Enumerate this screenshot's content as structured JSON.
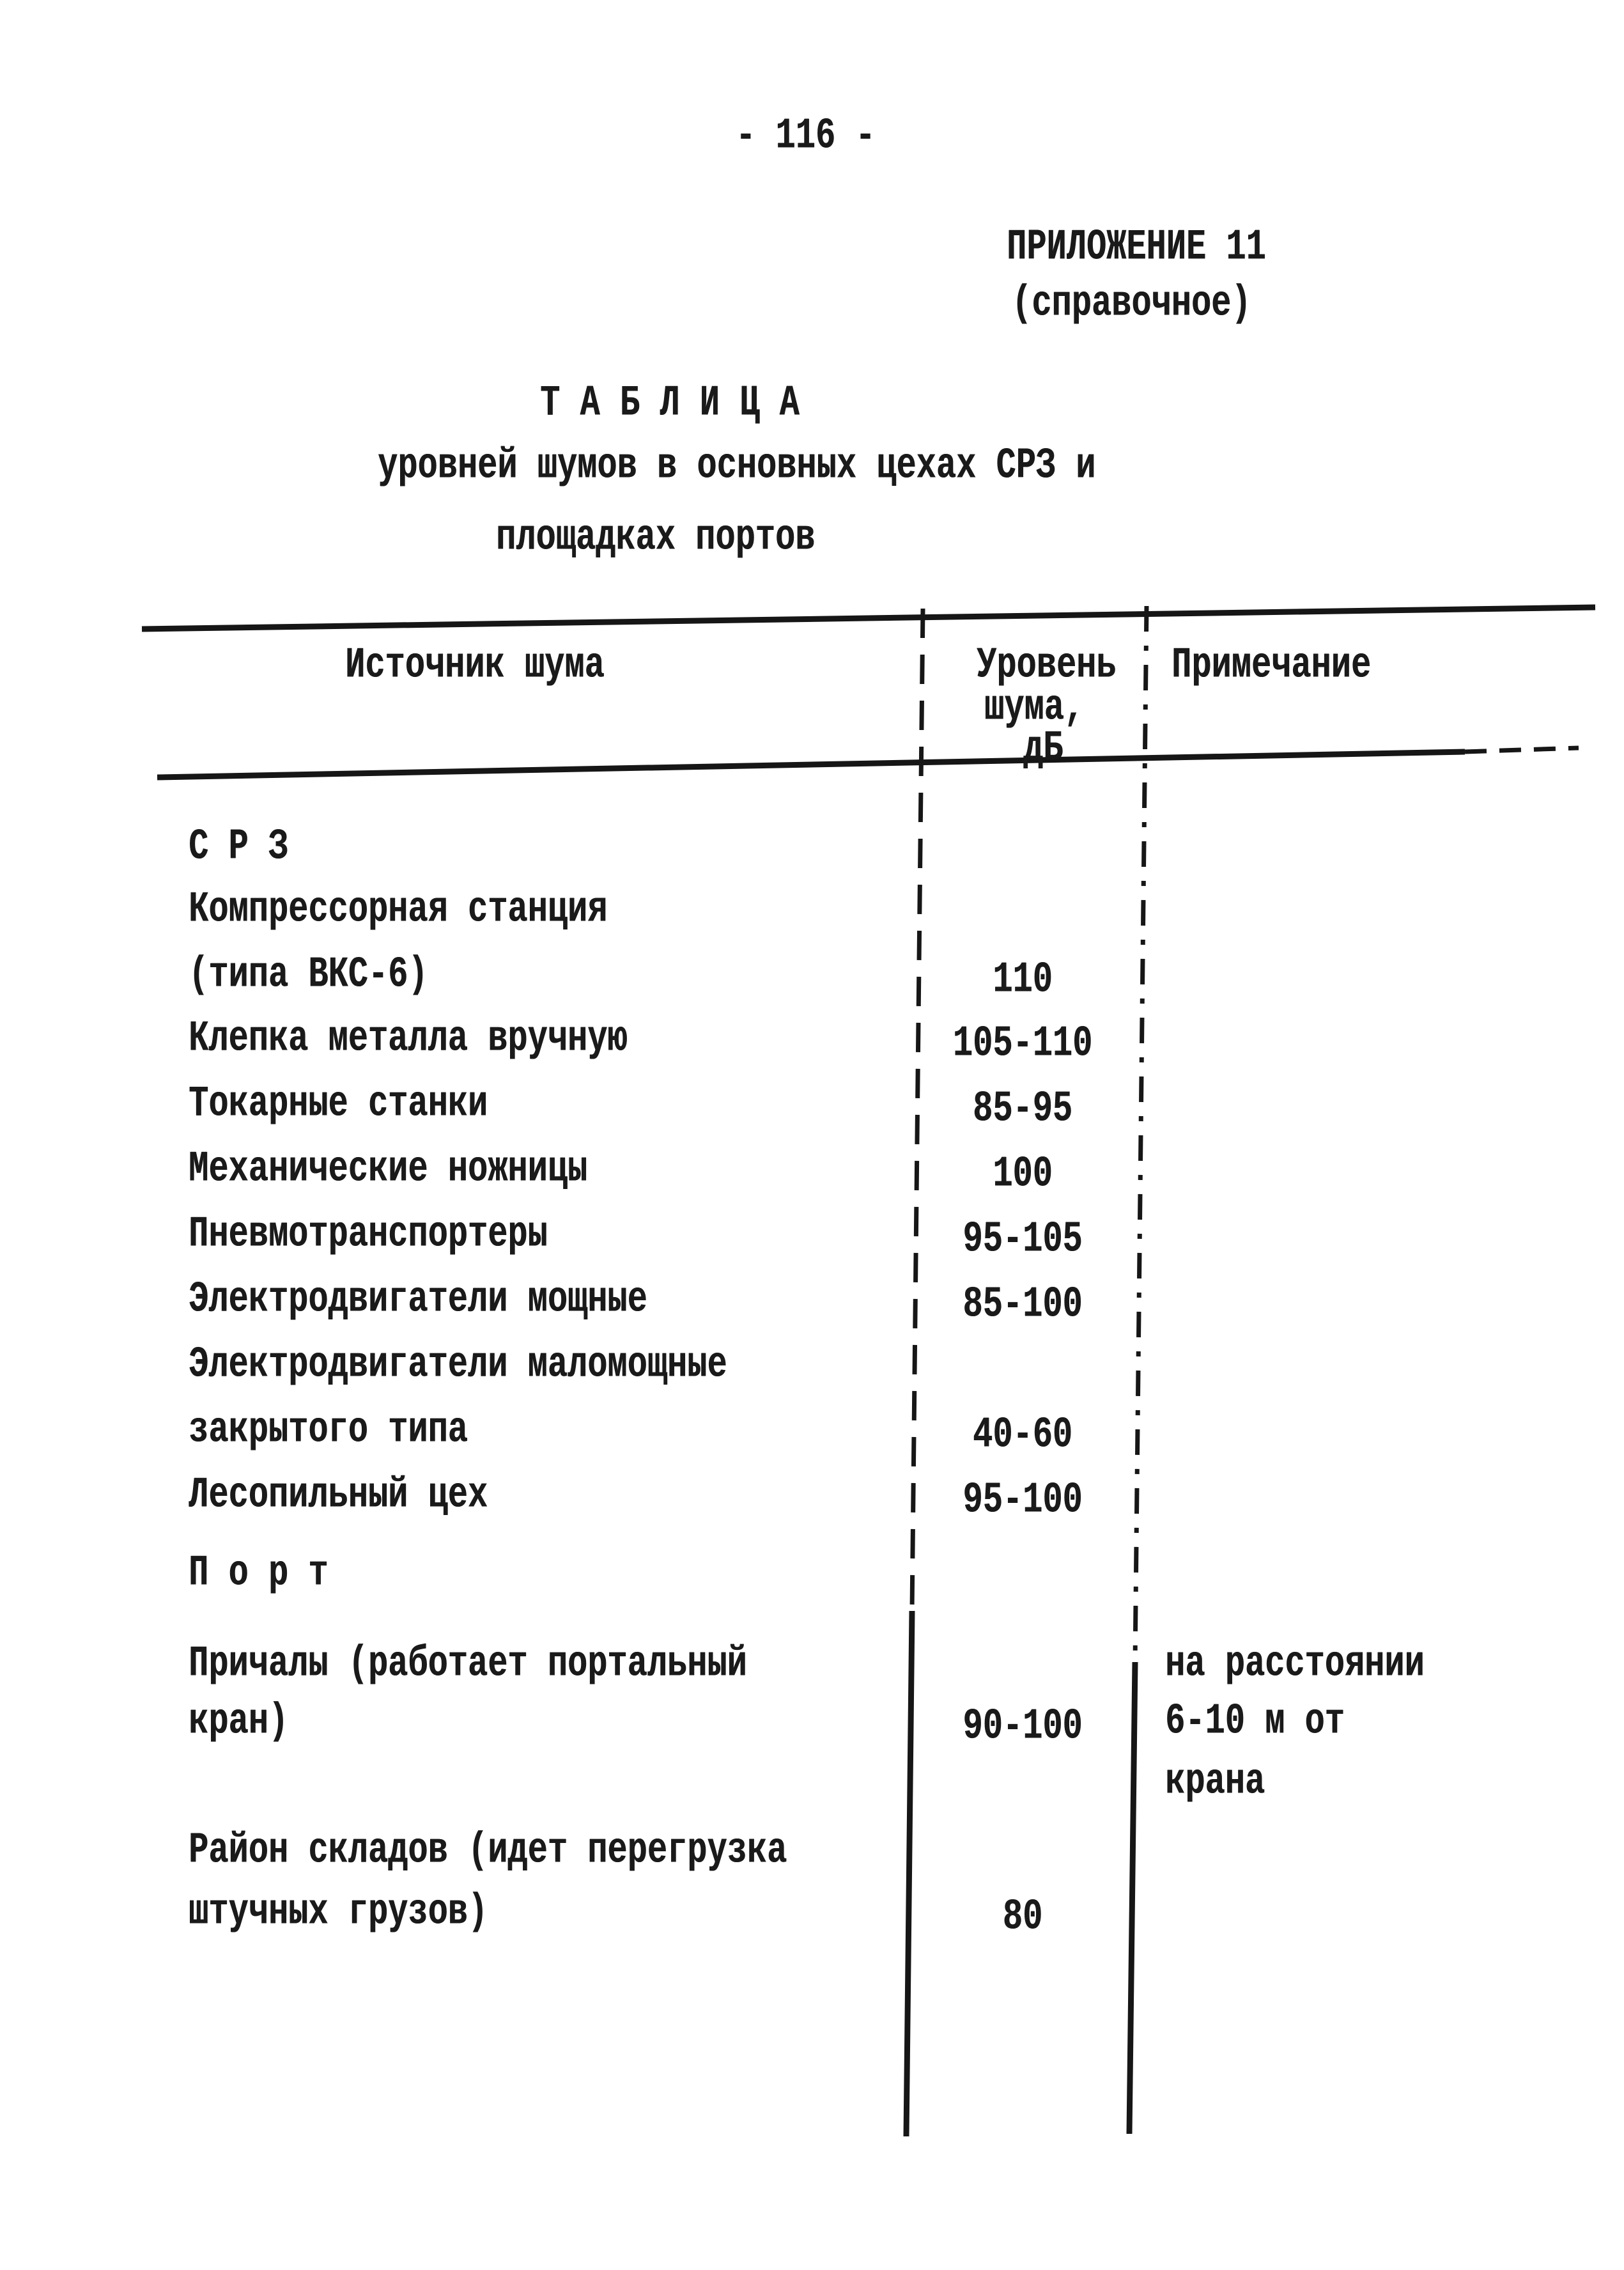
{
  "page": {
    "number_label": "- 116 -",
    "appendix": {
      "line1": "ПРИЛОЖЕНИЕ 11",
      "line2": "(справочное)"
    },
    "title": {
      "line1": "Т А Б Л И Ц А",
      "line2": "уровней шумов в основных цехах СРЗ и",
      "line3": "площадках портов"
    }
  },
  "table": {
    "header": {
      "source": "Источник шума",
      "level_line1": "Уровень",
      "level_line2": "шума,",
      "level_line3": "дБ",
      "note": "Примечание"
    },
    "rows": [
      {
        "label": "С Р З",
        "value": "",
        "note": "",
        "section": true
      },
      {
        "label": "Компрессорная станция",
        "value": "",
        "note": "",
        "section": false
      },
      {
        "label": "(типа ВКС-6)",
        "value": "110",
        "note": "",
        "section": false
      },
      {
        "label": "Клепка металла вручную",
        "value": "105-110",
        "note": "",
        "section": false
      },
      {
        "label": "Токарные станки",
        "value": "85-95",
        "note": "",
        "section": false
      },
      {
        "label": "Механические ножницы",
        "value": "100",
        "note": "",
        "section": false
      },
      {
        "label": "Пневмотранспортеры",
        "value": "95-105",
        "note": "",
        "section": false
      },
      {
        "label": "Электродвигатели мощные",
        "value": "85-100",
        "note": "",
        "section": false
      },
      {
        "label": "Электродвигатели маломощные",
        "value": "",
        "note": "",
        "section": false
      },
      {
        "label": "закрытого типа",
        "value": "40-60",
        "note": "",
        "section": false
      },
      {
        "label": "Лесопильный цех",
        "value": "95-100",
        "note": "",
        "section": false
      },
      {
        "label": "П о р т",
        "value": "",
        "note": "",
        "section": true
      },
      {
        "label": "Причалы (работает портальный",
        "value": "",
        "note": "на расстоянии",
        "section": false
      },
      {
        "label": "кран)",
        "value": "90-100",
        "note": "6-10 м от",
        "section": false
      },
      {
        "label": "",
        "value": "",
        "note": "крана",
        "section": false
      },
      {
        "label": "Район складов (идет перегрузка",
        "value": "",
        "note": "",
        "section": false
      },
      {
        "label": "штучных грузов)",
        "value": "80",
        "note": "",
        "section": false
      }
    ]
  },
  "colors": {
    "ink": "#1a1a1a",
    "paper": "#ffffff"
  }
}
